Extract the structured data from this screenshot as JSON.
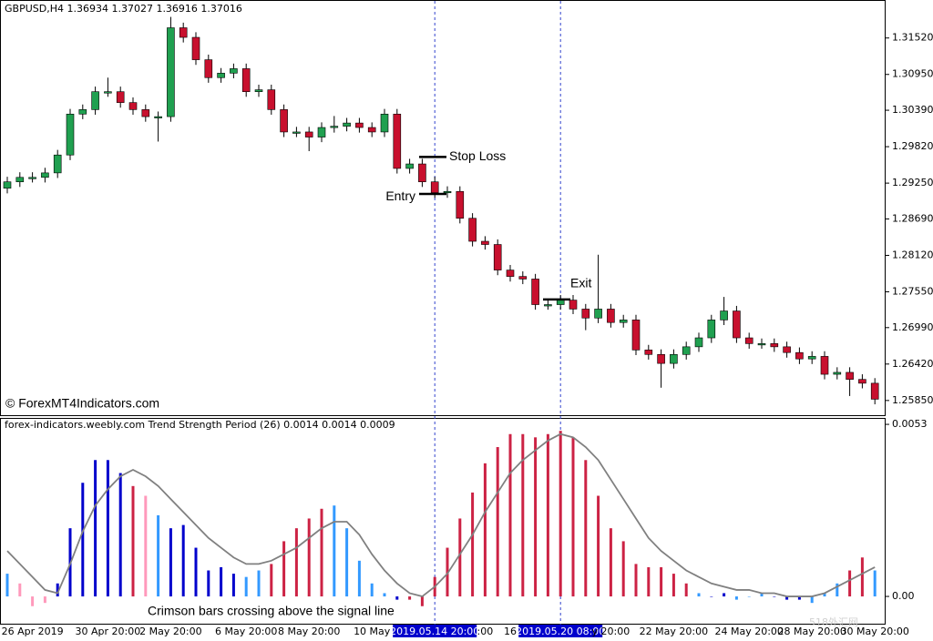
{
  "chart_data": [
    {
      "type": "candlestick",
      "title": "GBPUSD,H4  1.36934 1.37027 1.36916 1.37016",
      "watermark": "© ForexMT4Indicators.com",
      "categories": [
        null,
        null,
        "26 Apr 2019",
        null,
        null,
        null,
        null,
        null,
        "30 Apr 20:00",
        null,
        null,
        null,
        null,
        "2 May 20:00",
        null,
        null,
        null,
        null,
        null,
        "6 May 20:00",
        null,
        null,
        null,
        null,
        "8 May 20:00",
        null,
        null,
        null,
        null,
        "10 May",
        null,
        null,
        null,
        null,
        "2019.05.14 20:00",
        null,
        null,
        null,
        ":00",
        null,
        "16",
        null,
        null,
        null,
        "2019.05.20 08:00",
        null,
        null,
        null,
        "y 20:00",
        null,
        null,
        null,
        null,
        "22 May 20:00",
        null,
        null,
        null,
        null,
        null,
        "24 May 20:00",
        null,
        null,
        null,
        null,
        "28 May 20:00",
        null,
        null,
        null,
        null,
        "30 May 20:00"
      ],
      "open": [
        1.2917,
        1.2927,
        1.2934,
        1.2934,
        1.2941,
        1.2969,
        1.3033,
        1.304,
        1.3068,
        1.3068,
        1.3051,
        1.304,
        1.3029,
        1.3029,
        1.3168,
        1.3153,
        1.3118,
        1.309,
        1.3097,
        1.3104,
        1.3068,
        1.3071,
        1.304,
        1.3005,
        1.3005,
        1.2997,
        1.3012,
        1.3014,
        1.3019,
        1.3012,
        1.3005,
        1.3033,
        1.2948,
        1.2955,
        1.2927,
        1.291,
        1.2912,
        1.287,
        1.2834,
        1.2829,
        1.2789,
        1.2779,
        1.2775,
        1.2735,
        1.2735,
        1.2742,
        1.2728,
        1.2714,
        1.2728,
        1.2707,
        1.2711,
        1.2664,
        1.2657,
        1.2643,
        1.2657,
        1.2669,
        1.2683,
        1.2711,
        1.2725,
        1.2683,
        1.2674,
        1.2674,
        1.2669,
        1.266,
        1.265,
        1.2654,
        1.2626,
        1.2629,
        1.2618,
        1.2612
      ],
      "high": [
        1.2935,
        1.2942,
        1.2942,
        1.2949,
        1.2977,
        1.3041,
        1.3048,
        1.3076,
        1.309,
        1.3076,
        1.3059,
        1.3048,
        1.3037,
        1.3185,
        1.3176,
        1.3161,
        1.3126,
        1.3105,
        1.3112,
        1.3112,
        1.3079,
        1.3079,
        1.3048,
        1.3013,
        1.3013,
        1.302,
        1.303,
        1.3027,
        1.3027,
        1.302,
        1.3041,
        1.3041,
        1.2963,
        1.2963,
        1.2935,
        1.292,
        1.292,
        1.2878,
        1.2842,
        1.2837,
        1.2797,
        1.2787,
        1.2783,
        1.2743,
        1.275,
        1.275,
        1.2736,
        1.2813,
        1.2736,
        1.2719,
        1.2719,
        1.2672,
        1.2665,
        1.2665,
        1.2677,
        1.2691,
        1.2719,
        1.2747,
        1.2733,
        1.2691,
        1.2682,
        1.2682,
        1.2677,
        1.2668,
        1.2662,
        1.2662,
        1.2637,
        1.2637,
        1.2626,
        1.262
      ],
      "low": [
        1.2909,
        1.2919,
        1.2926,
        1.2926,
        1.2933,
        1.2961,
        1.3025,
        1.3032,
        1.306,
        1.3043,
        1.3032,
        1.3021,
        1.299,
        1.3021,
        1.3145,
        1.311,
        1.3082,
        1.3082,
        1.3089,
        1.306,
        1.306,
        1.3032,
        1.2997,
        1.2997,
        1.2975,
        1.2989,
        1.3004,
        1.3006,
        1.3004,
        1.2997,
        1.2997,
        1.294,
        1.294,
        1.2919,
        1.2902,
        1.2902,
        1.2862,
        1.2826,
        1.2821,
        1.2781,
        1.2771,
        1.2767,
        1.2727,
        1.2727,
        1.2727,
        1.272,
        1.2695,
        1.2706,
        1.2699,
        1.2699,
        1.2656,
        1.2649,
        1.2605,
        1.2635,
        1.2649,
        1.2661,
        1.2675,
        1.2703,
        1.2675,
        1.2666,
        1.2666,
        1.2661,
        1.2652,
        1.2642,
        1.2642,
        1.2618,
        1.2618,
        1.2592,
        1.2604,
        1.2579
      ],
      "close": [
        1.2927,
        1.2934,
        1.2934,
        1.2941,
        1.2969,
        1.3033,
        1.304,
        1.3068,
        1.3068,
        1.3051,
        1.304,
        1.3029,
        1.3029,
        1.3168,
        1.3153,
        1.3118,
        1.309,
        1.3097,
        1.3104,
        1.3068,
        1.3071,
        1.304,
        1.3005,
        1.3005,
        1.2997,
        1.3012,
        1.3014,
        1.3019,
        1.3012,
        1.3005,
        1.3033,
        1.2948,
        1.2955,
        1.2927,
        1.291,
        1.2912,
        1.287,
        1.2834,
        1.2829,
        1.2789,
        1.2779,
        1.2775,
        1.2735,
        1.2735,
        1.2742,
        1.2728,
        1.2714,
        1.2728,
        1.2707,
        1.2711,
        1.2664,
        1.2657,
        1.2643,
        1.2657,
        1.2669,
        1.2683,
        1.2711,
        1.2725,
        1.2683,
        1.2674,
        1.2674,
        1.2669,
        1.266,
        1.265,
        1.2654,
        1.2626,
        1.2629,
        1.2618,
        1.2612,
        1.2587
      ],
      "up_color": "#20a050",
      "down_color": "#c8102e",
      "ylim": [
        1.2562,
        1.321
      ],
      "yticks": [
        {
          "value": 1.3152,
          "label": "1.31520"
        },
        {
          "value": 1.3095,
          "label": "1.30950"
        },
        {
          "value": 1.3039,
          "label": "1.30390"
        },
        {
          "value": 1.2982,
          "label": "1.29820"
        },
        {
          "value": 1.2925,
          "label": "1.29250"
        },
        {
          "value": 1.2869,
          "label": "1.28690"
        },
        {
          "value": 1.2812,
          "label": "1.28120"
        },
        {
          "value": 1.2755,
          "label": "1.27550"
        },
        {
          "value": 1.2699,
          "label": "1.26990"
        },
        {
          "value": 1.2642,
          "label": "1.26420"
        },
        {
          "value": 1.2585,
          "label": "1.25850"
        }
      ],
      "annotations": [
        {
          "text": "Stop Loss",
          "value": 1.2966
        },
        {
          "text": "Entry",
          "value": 1.2908
        },
        {
          "text": "Exit",
          "value": 1.2743
        }
      ]
    },
    {
      "type": "bar",
      "title": "forex-indicators.weebly.com Trend Strength Period (26) 0.0014 0.0014 0.0009",
      "values": [
        0.0007,
        0.0004,
        -0.0003,
        -0.0002,
        0.0004,
        0.0021,
        0.0035,
        0.0042,
        0.0042,
        0.0038,
        0.0034,
        0.0031,
        0.0025,
        0.0021,
        0.0022,
        0.0015,
        0.0008,
        0.0009,
        0.0007,
        0.0006,
        0.0008,
        0.001,
        0.0017,
        0.0021,
        0.0024,
        0.0027,
        0.0028,
        0.0021,
        0.0011,
        0.0004,
        0.0001,
        -0.0001,
        -0.0001,
        -0.0003,
        0.0006,
        0.0015,
        0.0024,
        0.0032,
        0.0041,
        0.0046,
        0.005,
        0.005,
        0.0049,
        0.005,
        0.0051,
        0.0049,
        0.0042,
        0.0031,
        0.0021,
        0.0017,
        0.001,
        0.0009,
        0.0009,
        0.0007,
        0.0004,
        0.0001,
        0,
        0.0001,
        -0.0001,
        0,
        0.0001,
        0,
        -0.0001,
        -0.0001,
        -0.0002,
        0.0001,
        0.0004,
        0.0008,
        0.0012,
        0.0008
      ],
      "colors": [
        "#3399ff",
        "#ff99bb",
        "#ff99bb",
        "#ff99bb",
        "#0000cc",
        "#0000cc",
        "#0000cc",
        "#0000cc",
        "#0000cc",
        "#0000cc",
        "#cc2244",
        "#ff99bb",
        "#3399ff",
        "#0000cc",
        "#0000cc",
        "#0000cc",
        "#0000cc",
        "#0000cc",
        "#0000cc",
        "#3399ff",
        "#3399ff",
        "#cc2244",
        "#cc2244",
        "#cc2244",
        "#cc2244",
        "#cc2244",
        "#3399ff",
        "#3399ff",
        "#3399ff",
        "#3399ff",
        "#3399ff",
        "#0000cc",
        "#cc2244",
        "#cc2244",
        "#cc2244",
        "#cc2244",
        "#cc2244",
        "#cc2244",
        "#cc2244",
        "#cc2244",
        "#cc2244",
        "#cc2244",
        "#cc2244",
        "#cc2244",
        "#cc2244",
        "#cc2244",
        "#cc2244",
        "#cc2244",
        "#cc2244",
        "#cc2244",
        "#cc2244",
        "#cc2244",
        "#cc2244",
        "#cc2244",
        "#cc2244",
        "#3399ff",
        "#0000cc",
        "#0000cc",
        "#3399ff",
        "#3399ff",
        "#3399ff",
        "#0000cc",
        "#0000cc",
        "#0000cc",
        "#3399ff",
        "#3399ff",
        "#3399ff",
        "#cc2244",
        "#cc2244",
        "#3399ff"
      ],
      "signal": [
        0.0014,
        0.001,
        0.0006,
        0.0002,
        0.0001,
        0.001,
        0.002,
        0.0028,
        0.0033,
        0.0037,
        0.0039,
        0.0037,
        0.0034,
        0.003,
        0.0026,
        0.0022,
        0.0018,
        0.0015,
        0.0012,
        0.001,
        0.001,
        0.0011,
        0.0013,
        0.0015,
        0.0018,
        0.0021,
        0.0023,
        0.0023,
        0.0019,
        0.0013,
        0.0008,
        0.0004,
        0.0001,
        0,
        0.0003,
        0.0007,
        0.0013,
        0.0019,
        0.0026,
        0.0032,
        0.0038,
        0.0042,
        0.0045,
        0.0048,
        0.005,
        0.0049,
        0.0046,
        0.0042,
        0.0036,
        0.003,
        0.0024,
        0.0018,
        0.0014,
        0.0011,
        0.0008,
        0.0006,
        0.0004,
        0.0003,
        0.0002,
        0.0002,
        0.0001,
        0.0001,
        0,
        0,
        0,
        0.0001,
        0.0003,
        0.0005,
        0.0007,
        0.0009
      ],
      "signal_color": "#808080",
      "ylim": [
        -0.00084,
        0.00547
      ],
      "yticks": [
        0.0053,
        {
          "value": 0,
          "label": "0.00"
        }
      ],
      "annotation": "Crimson bars crossing above the signal line"
    }
  ],
  "watermark": "518外汇网"
}
